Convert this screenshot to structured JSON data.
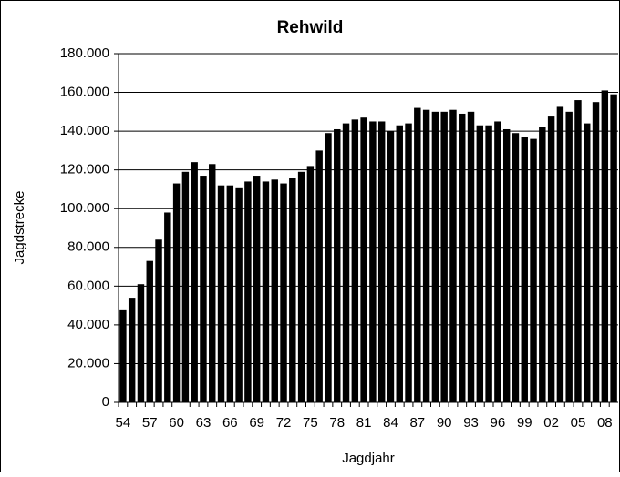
{
  "chart_data": {
    "type": "bar",
    "title": "Rehwild",
    "x_label": "Jagdjahr",
    "y_label": "Jagdstrecke",
    "categories": [
      "54",
      null,
      null,
      "57",
      null,
      null,
      "60",
      null,
      null,
      "63",
      null,
      null,
      "66",
      null,
      null,
      "69",
      null,
      null,
      "72",
      null,
      null,
      "75",
      null,
      null,
      "78",
      null,
      null,
      "81",
      null,
      null,
      "84",
      null,
      null,
      "87",
      null,
      null,
      "90",
      null,
      null,
      "93",
      null,
      null,
      "96",
      null,
      null,
      "99",
      null,
      null,
      "02",
      null,
      null,
      "05",
      null,
      null,
      "08",
      null
    ],
    "values": [
      48000,
      54000,
      61000,
      73000,
      84000,
      98000,
      113000,
      119000,
      124000,
      117000,
      123000,
      112000,
      112000,
      111000,
      114000,
      117000,
      114000,
      115000,
      113000,
      116000,
      119000,
      122000,
      130000,
      139000,
      141000,
      144000,
      146000,
      147000,
      145000,
      145000,
      140000,
      143000,
      144000,
      152000,
      151000,
      150000,
      150000,
      151000,
      149000,
      150000,
      143000,
      143000,
      145000,
      141000,
      139000,
      137000,
      136000,
      142000,
      148000,
      153000,
      150000,
      156000,
      144000,
      155000,
      161000,
      159000
    ],
    "color": "#000000",
    "ylim": [
      0,
      180000
    ],
    "yticks": [
      0,
      {
        "value": 20000,
        "label": "20.000"
      },
      {
        "value": 40000,
        "label": "40.000"
      },
      {
        "value": 60000,
        "label": "60.000"
      },
      {
        "value": 80000,
        "label": "80.000"
      },
      {
        "value": 100000,
        "label": "100.000"
      },
      {
        "value": 120000,
        "label": "120.000"
      },
      {
        "value": 140000,
        "label": "140.000"
      },
      {
        "value": 160000,
        "label": "160.000"
      },
      {
        "value": 180000,
        "label": "180.000"
      }
    ],
    "grid": true
  }
}
